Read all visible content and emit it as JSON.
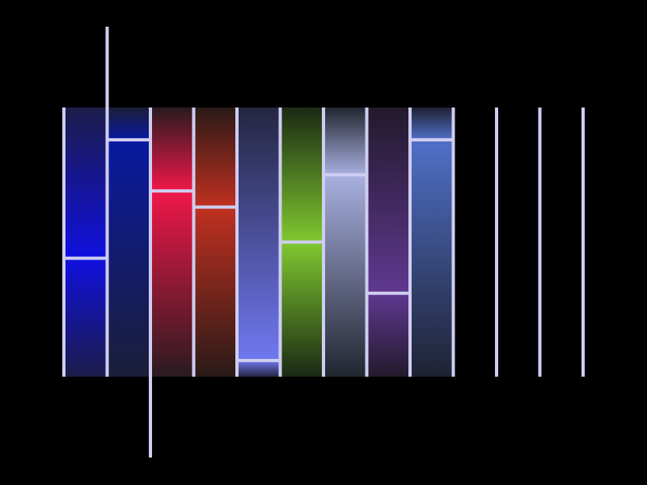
{
  "background": "#000000",
  "divider_color": "#cfcdf0",
  "columns": [
    {
      "name": "column-1",
      "color": "#1010e0",
      "level": 0.44,
      "tint": "#1c1c4a"
    },
    {
      "name": "column-2",
      "color": "#0a1aa0",
      "level": 0.88,
      "tint": "#1a1e38"
    },
    {
      "name": "column-3",
      "color": "#f01848",
      "level": 0.69,
      "tint": "#2a1a20"
    },
    {
      "name": "column-4",
      "color": "#c03020",
      "level": 0.63,
      "tint": "#2a1a18"
    },
    {
      "name": "column-5",
      "color": "#7078f0",
      "level": 0.06,
      "tint": "#242640"
    },
    {
      "name": "column-6",
      "color": "#80c830",
      "level": 0.5,
      "tint": "#1a2a14"
    },
    {
      "name": "column-7",
      "color": "#a8b0e0",
      "level": 0.75,
      "tint": "#222630"
    },
    {
      "name": "column-8",
      "color": "#603890",
      "level": 0.31,
      "tint": "#221a2c"
    },
    {
      "name": "column-9",
      "color": "#5070c8",
      "level": 0.88,
      "tint": "#1e2232"
    },
    {
      "name": "column-10",
      "color": "#000000",
      "level": 0.0,
      "tint": "#000000"
    },
    {
      "name": "column-11",
      "color": "#000000",
      "level": 0.0,
      "tint": "#000000"
    },
    {
      "name": "column-12",
      "color": "#000000",
      "level": 0.0,
      "tint": "#000000"
    }
  ]
}
